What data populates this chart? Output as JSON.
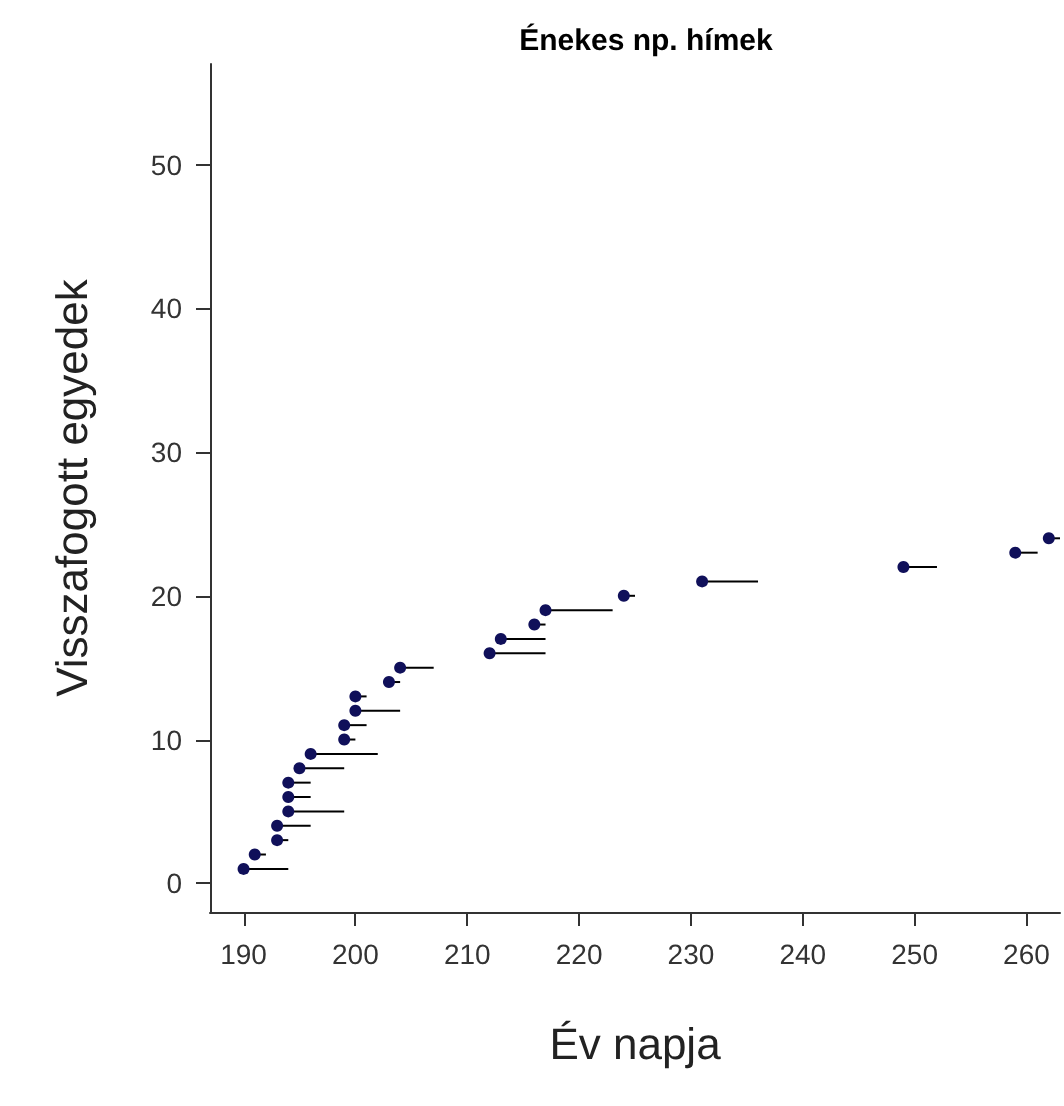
{
  "chart_data": {
    "type": "scatter",
    "title": "Énekes np. hímek",
    "xlabel": "Év napja",
    "ylabel": "Visszafogott egyedek",
    "x": [
      190,
      191,
      193,
      193,
      194,
      194,
      194,
      195,
      196,
      199,
      199,
      200,
      200,
      203,
      204,
      212,
      213,
      216,
      217,
      224,
      231,
      249,
      259,
      262
    ],
    "values": [
      1,
      2,
      3,
      4,
      5,
      6,
      7,
      8,
      9,
      10,
      11,
      12,
      13,
      14,
      15,
      16,
      17,
      18,
      19,
      20,
      21,
      22,
      23,
      24
    ],
    "xerrors": [
      [
        190,
        194
      ],
      [
        191,
        192
      ],
      [
        193,
        194
      ],
      [
        193,
        196
      ],
      [
        194,
        199
      ],
      [
        194,
        196
      ],
      [
        194,
        196
      ],
      [
        195,
        199
      ],
      [
        196,
        202
      ],
      [
        199,
        200
      ],
      [
        199,
        201
      ],
      [
        200,
        204
      ],
      [
        200,
        201
      ],
      [
        203,
        204
      ],
      [
        204,
        207
      ],
      [
        212,
        217
      ],
      [
        213,
        217
      ],
      [
        216,
        217
      ],
      [
        217,
        223
      ],
      [
        224,
        225
      ],
      [
        231,
        236
      ],
      [
        249,
        252
      ],
      [
        259,
        261
      ],
      [
        262,
        263
      ]
    ],
    "color": "#10105a",
    "marker": "circle",
    "grid": false,
    "xlim": [
      187,
      263
    ],
    "xticks": [
      190,
      200,
      210,
      220,
      230,
      240,
      250,
      260
    ],
    "ylim": [
      -2,
      57
    ],
    "yticks": [
      0,
      10,
      20,
      30,
      40,
      50
    ]
  }
}
